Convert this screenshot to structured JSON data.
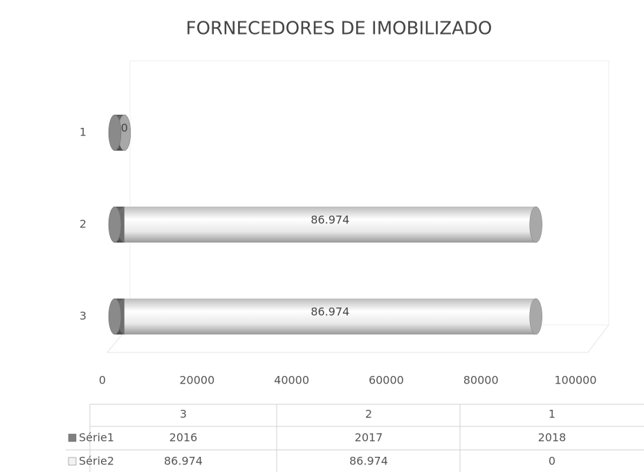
{
  "chart_data": {
    "type": "bar",
    "stacked": true,
    "orientation": "horizontal",
    "title": "FORNECEDORES DE IMOBILIZADO",
    "categories": [
      "3",
      "2",
      "1"
    ],
    "series": [
      {
        "name": "Série1",
        "color": "#7f7f7f",
        "values": [
          2016,
          2017,
          2018
        ]
      },
      {
        "name": "Série2",
        "color": "#f2f2f2",
        "values": [
          86974,
          86974,
          0
        ],
        "value_labels": [
          "86.974",
          "86.974",
          "0"
        ]
      }
    ],
    "xlim": [
      0,
      100000
    ],
    "xticks": [
      0,
      20000,
      40000,
      60000,
      80000,
      100000
    ],
    "data_table": true
  }
}
